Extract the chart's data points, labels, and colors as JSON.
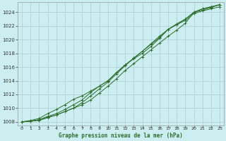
{
  "title": "Graphe pression niveau de la mer (hPa)",
  "background_color": "#cceef0",
  "grid_color": "#aaccd4",
  "line_color": "#2d6e2d",
  "x_min": 0,
  "x_max": 23,
  "y_min": 1007.5,
  "y_max": 1025.5,
  "yticks": [
    1008,
    1010,
    1012,
    1014,
    1016,
    1018,
    1020,
    1022,
    1024
  ],
  "xticks": [
    0,
    1,
    2,
    3,
    4,
    5,
    6,
    7,
    8,
    9,
    10,
    11,
    12,
    13,
    14,
    15,
    16,
    17,
    18,
    19,
    20,
    21,
    22,
    23
  ],
  "series": [
    [
      1008.0,
      1008.1,
      1008.3,
      1008.7,
      1009.0,
      1009.5,
      1010.0,
      1010.5,
      1011.2,
      1012.2,
      1013.2,
      1014.3,
      1015.5,
      1016.5,
      1017.5,
      1018.5,
      1019.5,
      1020.5,
      1021.4,
      1022.4,
      1024.0,
      1024.3,
      1024.7,
      1025.1
    ],
    [
      1008.0,
      1008.1,
      1008.3,
      1008.8,
      1009.2,
      1009.8,
      1010.5,
      1011.2,
      1012.3,
      1013.2,
      1014.0,
      1015.2,
      1016.3,
      1017.3,
      1018.3,
      1019.3,
      1020.3,
      1021.5,
      1022.2,
      1023.0,
      1024.0,
      1024.5,
      1024.8,
      1025.1
    ],
    [
      1008.0,
      1008.2,
      1008.5,
      1009.2,
      1009.8,
      1010.5,
      1011.3,
      1011.8,
      1012.5,
      1013.2,
      1014.0,
      1015.2,
      1016.3,
      1017.2,
      1018.0,
      1019.0,
      1020.2,
      1021.5,
      1022.3,
      1023.0,
      1024.0,
      1024.5,
      1024.8,
      1025.1
    ],
    [
      1008.0,
      1008.1,
      1008.2,
      1008.6,
      1009.0,
      1009.5,
      1010.0,
      1010.8,
      1011.8,
      1012.8,
      1013.8,
      1015.0,
      1016.2,
      1017.3,
      1018.3,
      1019.4,
      1020.5,
      1021.5,
      1022.2,
      1022.8,
      1023.8,
      1024.2,
      1024.5,
      1024.8
    ]
  ]
}
